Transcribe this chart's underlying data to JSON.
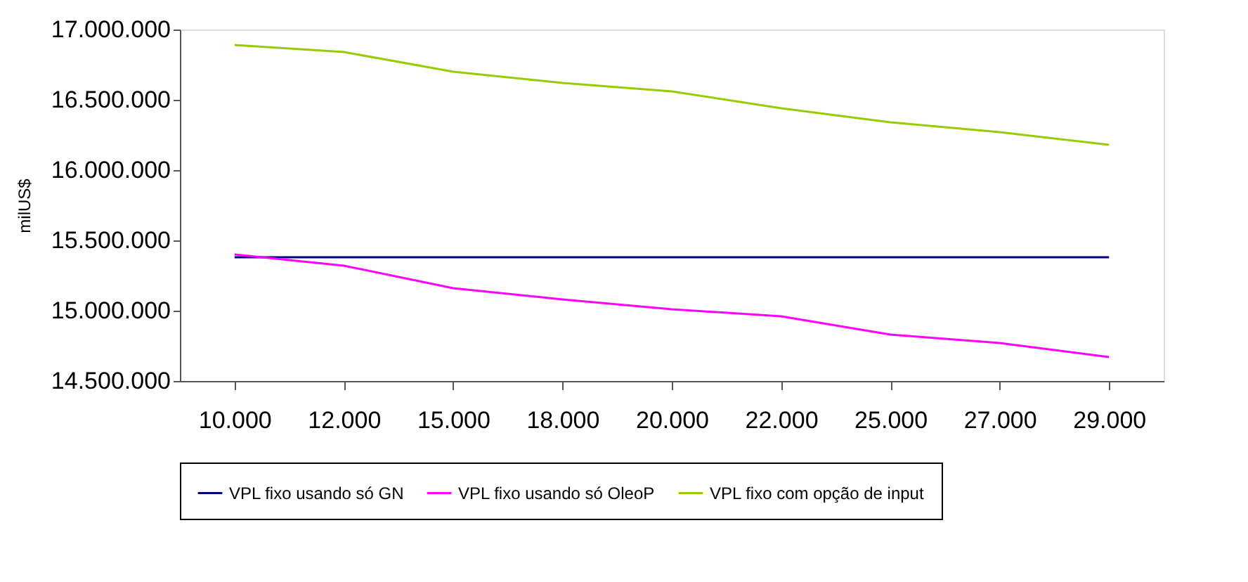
{
  "chart_data": {
    "type": "line",
    "ylabel": "milUS$",
    "categories": [
      "10.000",
      "12.000",
      "15.000",
      "18.000",
      "20.000",
      "22.000",
      "25.000",
      "27.000",
      "29.000"
    ],
    "series": [
      {
        "name": "VPL fixo usando só GN",
        "color": "#000080",
        "values": [
          15380000,
          15380000,
          15380000,
          15380000,
          15380000,
          15380000,
          15380000,
          15380000,
          15380000
        ]
      },
      {
        "name": "VPL fixo usando só OleoP",
        "color": "#ff00ff",
        "values": [
          15400000,
          15320000,
          15160000,
          15080000,
          15010000,
          14960000,
          14830000,
          14770000,
          14670000
        ]
      },
      {
        "name": "VPL fixo com opção de input",
        "color": "#99cc00",
        "values": [
          16890000,
          16840000,
          16700000,
          16620000,
          16560000,
          16440000,
          16340000,
          16270000,
          16180000
        ]
      }
    ],
    "ylim": [
      14500000,
      17000000
    ],
    "yticks": [
      {
        "value": 14500000,
        "label": "14.500.000"
      },
      {
        "value": 15000000,
        "label": "15.000.000"
      },
      {
        "value": 15500000,
        "label": "15.500.000"
      },
      {
        "value": 16000000,
        "label": "16.000.000"
      },
      {
        "value": 16500000,
        "label": "16.500.000"
      },
      {
        "value": 17000000,
        "label": "17.000.000"
      }
    ],
    "grid": false,
    "legend": "bottom",
    "marker": "none",
    "line_style": "solid"
  }
}
